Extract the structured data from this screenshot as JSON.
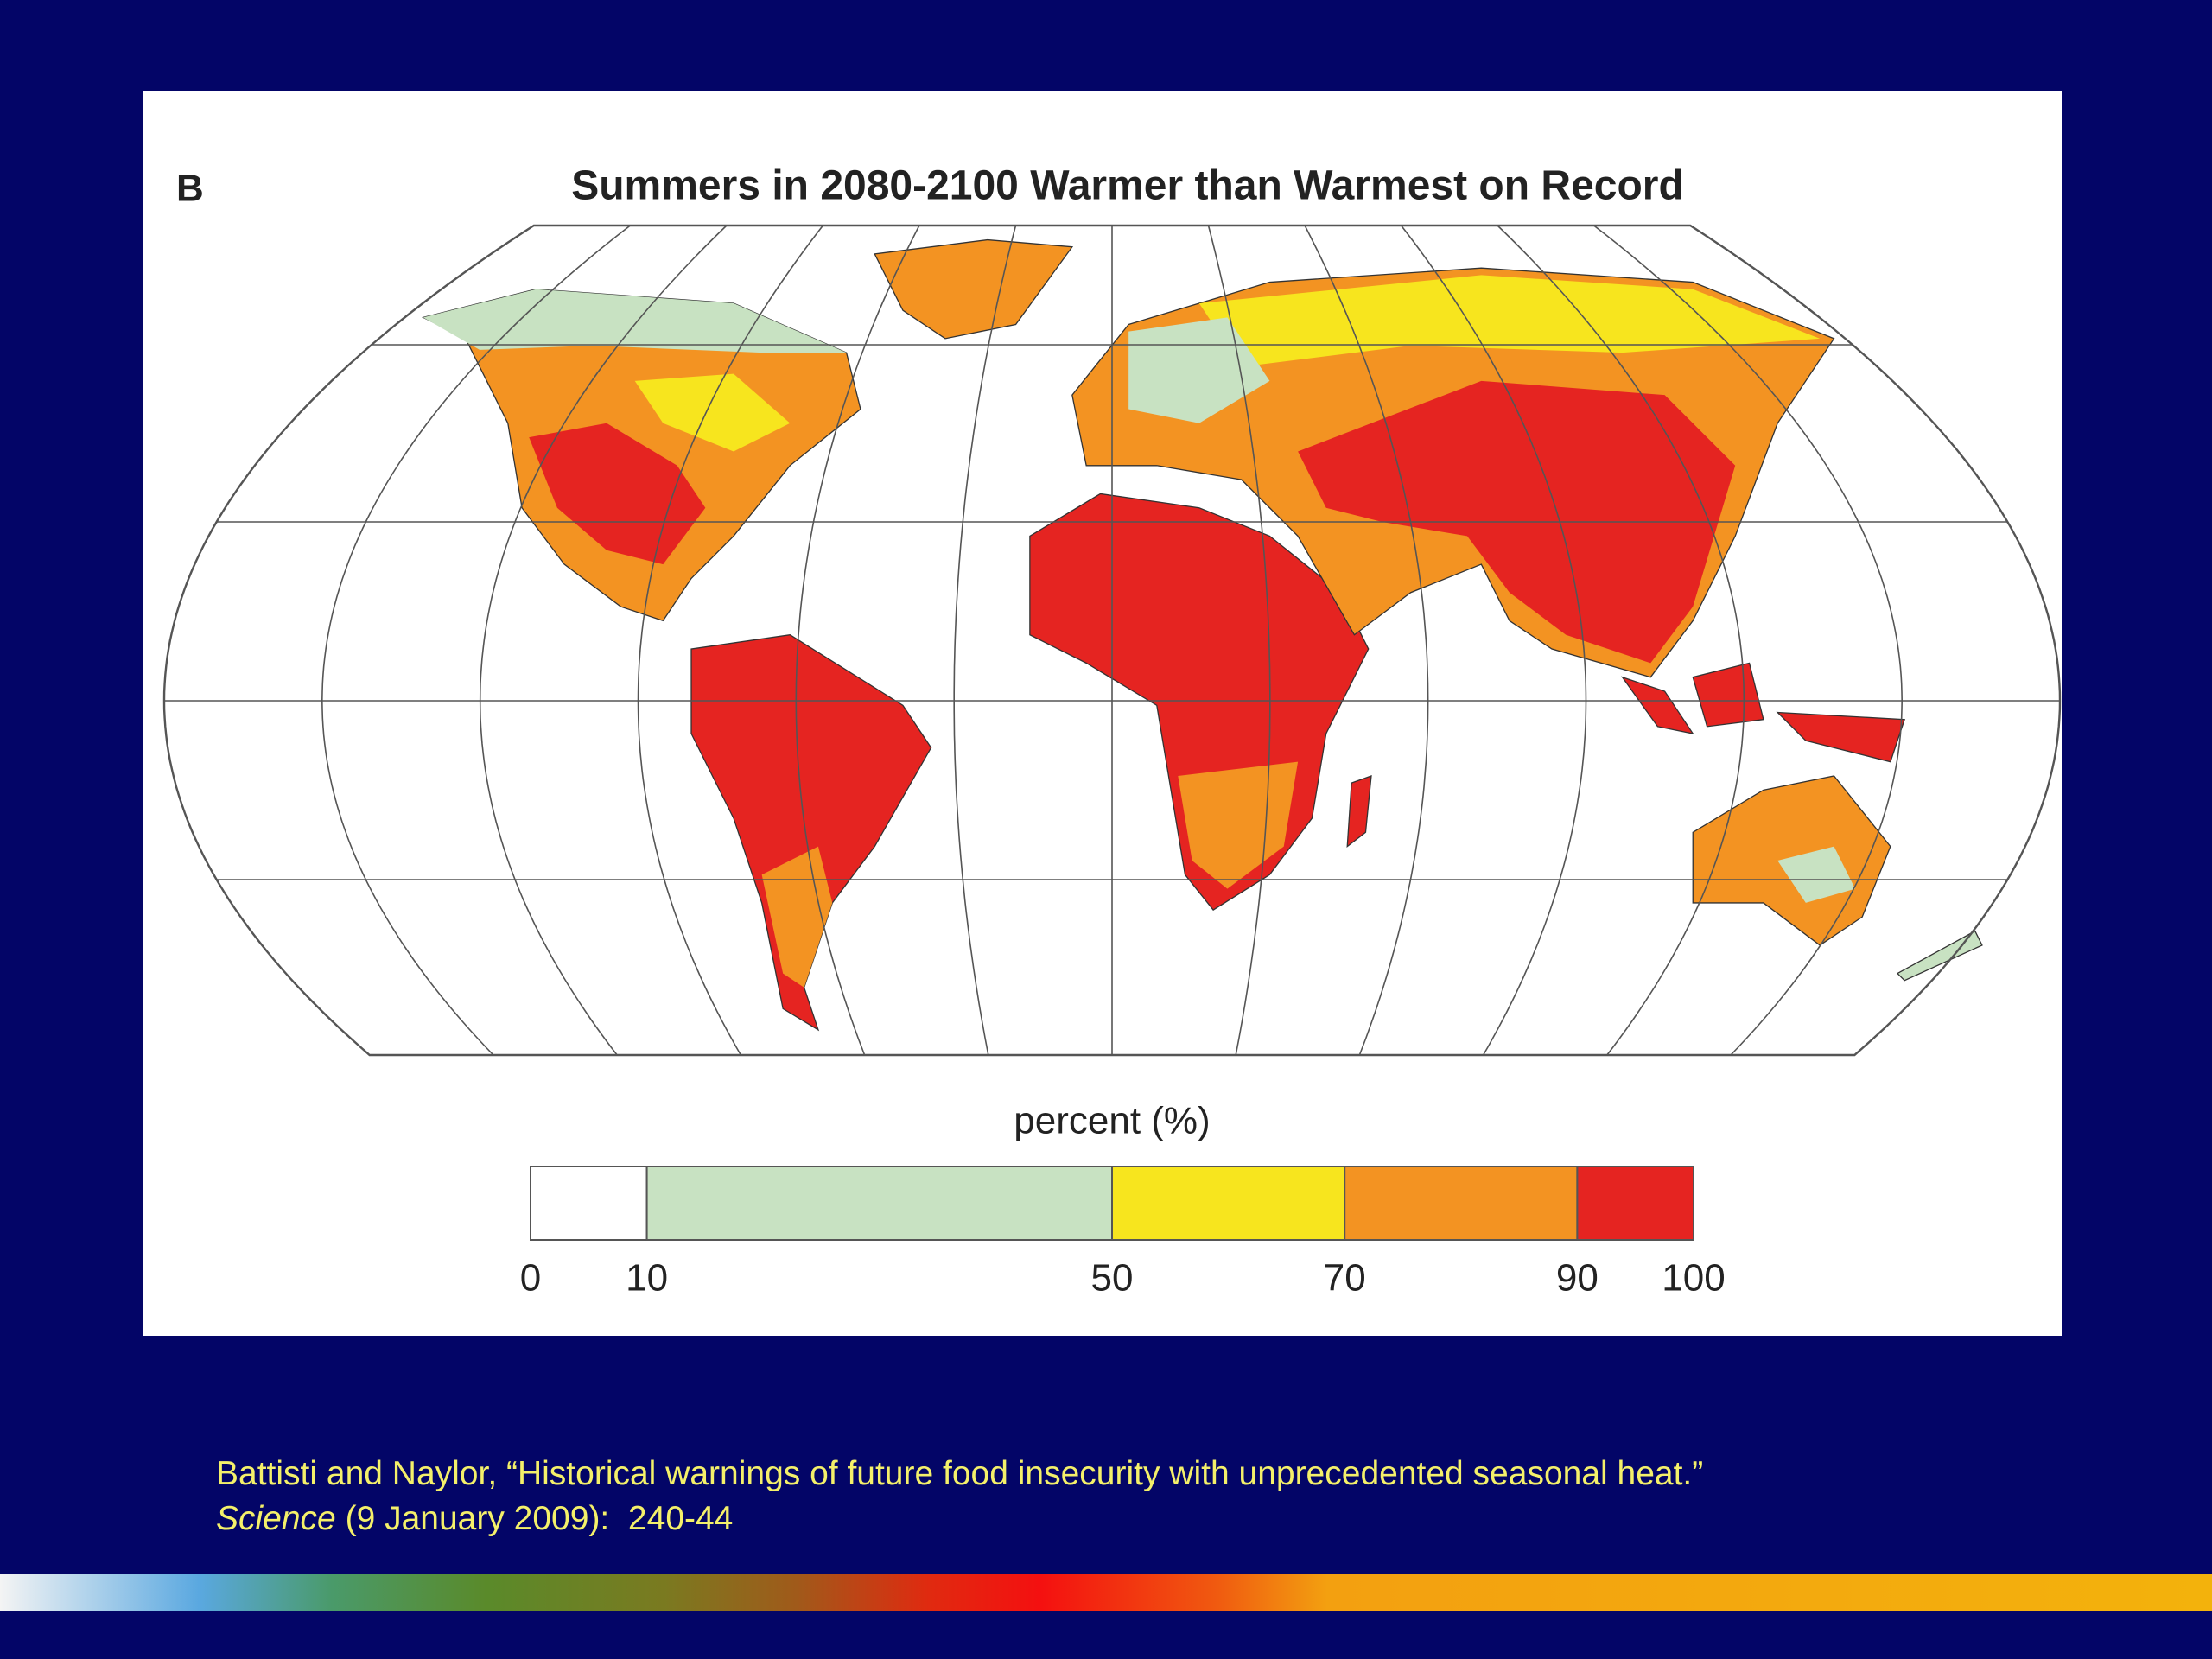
{
  "panel_label": "B",
  "title": "Summers in 2080-2100 Warmer than Warmest on Record",
  "colorbar": {
    "label": "percent (%)",
    "ticks": [
      0,
      10,
      50,
      70,
      90,
      100
    ],
    "colors": [
      "#ffffff",
      "#c8e2c2",
      "#f7e51e",
      "#f39322",
      "#e52421"
    ]
  },
  "citation": {
    "line1": "Battisti and Naylor, “Historical warnings of future food insecurity with unprecedented seasonal heat.”",
    "journal": "Science",
    "details": " (9 January 2009):  240-44"
  }
}
